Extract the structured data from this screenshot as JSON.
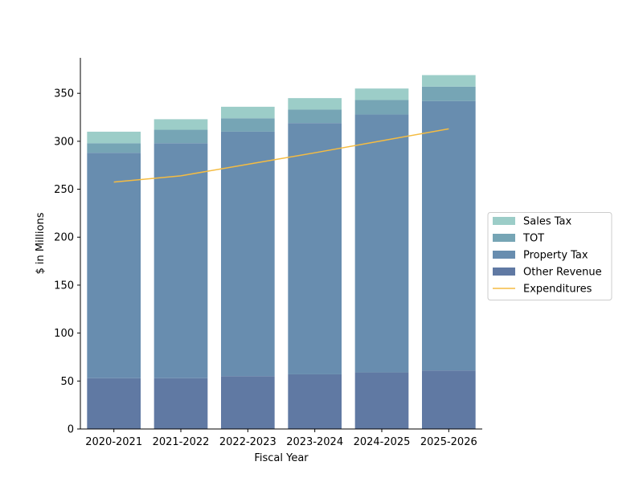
{
  "chart_data": {
    "type": "bar",
    "stacked": true,
    "xlabel": "Fiscal Year",
    "ylabel": "$ in Millions",
    "categories": [
      "2020-2021",
      "2021-2022",
      "2022-2023",
      "2023-2024",
      "2024-2025",
      "2025-2026"
    ],
    "ylim": [
      0,
      387
    ],
    "yticks": [
      0,
      50,
      100,
      150,
      200,
      250,
      300,
      350
    ],
    "grid": false,
    "legend_position": "right",
    "series": [
      {
        "name": "Other Revenue",
        "type": "bar",
        "color": "#6079a3",
        "values": [
          53,
          53,
          55,
          57,
          59,
          61
        ]
      },
      {
        "name": "Property Tax",
        "type": "bar",
        "color": "#688daf",
        "values": [
          235,
          245,
          255,
          262,
          269,
          281
        ]
      },
      {
        "name": "TOT",
        "type": "bar",
        "color": "#76a5b5",
        "values": [
          10,
          14,
          14,
          14,
          15,
          15
        ]
      },
      {
        "name": "Sales Tax",
        "type": "bar",
        "color": "#9ccdc8",
        "values": [
          12,
          11,
          12,
          12,
          12,
          12
        ]
      },
      {
        "name": "Expenditures",
        "type": "line",
        "color": "#f5bc42",
        "values": [
          257.5,
          264,
          276,
          288,
          300.5,
          313
        ]
      }
    ],
    "legend_order": [
      "Sales Tax",
      "TOT",
      "Property Tax",
      "Other Revenue",
      "Expenditures"
    ]
  }
}
